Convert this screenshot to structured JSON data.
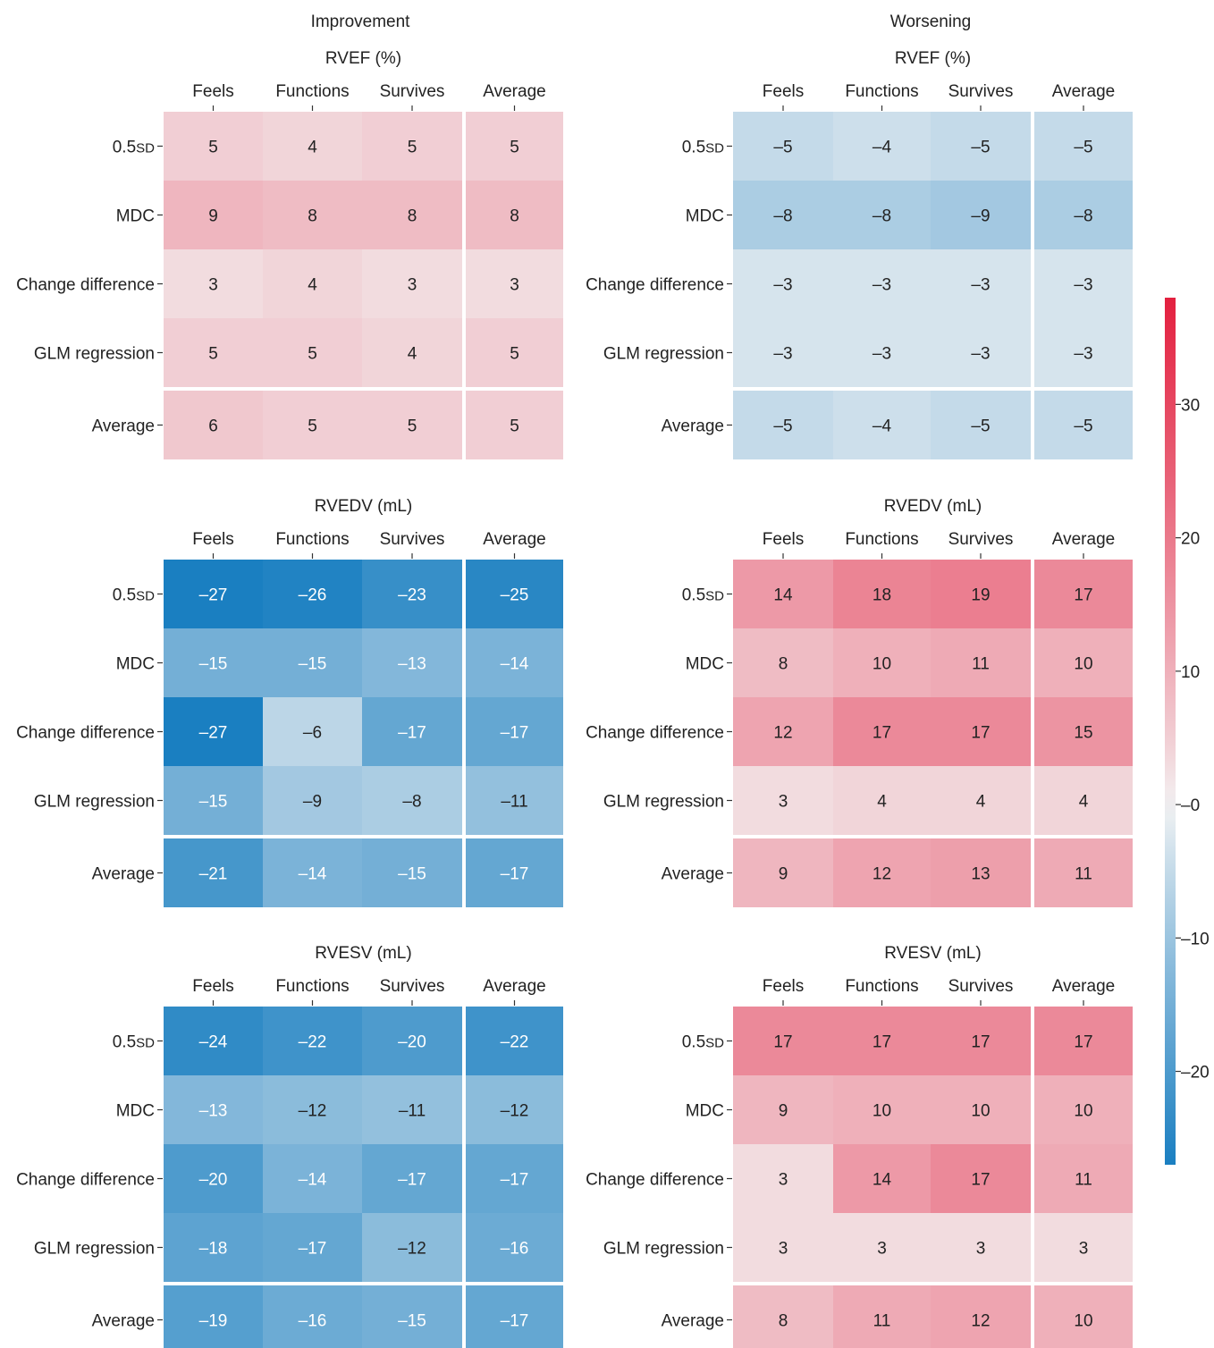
{
  "column_headers": [
    "Improvement",
    "Worsening"
  ],
  "chart_data": {
    "type": "heatmap",
    "colorbar": {
      "range": [
        -27,
        38
      ],
      "ticks": [
        30,
        20,
        10,
        0,
        -10,
        -20
      ],
      "tick_labels": [
        "30",
        "20",
        "10",
        "–0",
        "–10",
        "–20"
      ],
      "colors": {
        "low": "#1a7fc1",
        "mid": "#f4f4f4",
        "high": "#e3203f"
      }
    },
    "panels": [
      {
        "group": "Improvement",
        "title": "RVEF (%)",
        "x_labels": [
          "Feels",
          "Functions",
          "Survives",
          "Average"
        ],
        "y_labels": [
          "0.5SD",
          "MDC",
          "Change difference",
          "GLM regression",
          "Average"
        ],
        "values": [
          [
            5,
            4,
            5,
            5
          ],
          [
            9,
            8,
            8,
            8
          ],
          [
            3,
            4,
            3,
            3
          ],
          [
            5,
            5,
            4,
            5
          ],
          [
            6,
            5,
            5,
            5
          ]
        ],
        "cell_labels": [
          [
            "5",
            "4",
            "5",
            "5"
          ],
          [
            "9",
            "8",
            "8",
            "8"
          ],
          [
            "3",
            "4",
            "3",
            "3"
          ],
          [
            "5",
            "5",
            "4",
            "5"
          ],
          [
            "6",
            "5",
            "5",
            "5"
          ]
        ]
      },
      {
        "group": "Worsening",
        "title": "RVEF (%)",
        "x_labels": [
          "Feels",
          "Functions",
          "Survives",
          "Average"
        ],
        "y_labels": [
          "0.5SD",
          "MDC",
          "Change difference",
          "GLM regression",
          "Average"
        ],
        "values": [
          [
            -5,
            -4,
            -5,
            -5
          ],
          [
            -8,
            -8,
            -9,
            -8
          ],
          [
            -3,
            -3,
            -3,
            -3
          ],
          [
            -3,
            -3,
            -3,
            -3
          ],
          [
            -5,
            -4,
            -5,
            -5
          ]
        ],
        "cell_labels": [
          [
            "–5",
            "–4",
            "–5",
            "–5"
          ],
          [
            "–8",
            "–8",
            "–9",
            "–8"
          ],
          [
            "–3",
            "–3",
            "–3",
            "–3"
          ],
          [
            "–3",
            "–3",
            "–3",
            "–3"
          ],
          [
            "–5",
            "–4",
            "–5",
            "–5"
          ]
        ]
      },
      {
        "group": "Improvement",
        "title": "RVEDV (mL)",
        "x_labels": [
          "Feels",
          "Functions",
          "Survives",
          "Average"
        ],
        "y_labels": [
          "0.5SD",
          "MDC",
          "Change difference",
          "GLM regression",
          "Average"
        ],
        "values": [
          [
            -27,
            -26,
            -23,
            -25
          ],
          [
            -15,
            -15,
            -13,
            -14
          ],
          [
            -27,
            -6,
            -17,
            -17
          ],
          [
            -15,
            -9,
            -8,
            -11
          ],
          [
            -21,
            -14,
            -15,
            -17
          ]
        ],
        "cell_labels": [
          [
            "–27",
            "–26",
            "–23",
            "–25"
          ],
          [
            "–15",
            "–15",
            "–13",
            "–14"
          ],
          [
            "–27",
            "–6",
            "–17",
            "–17"
          ],
          [
            "–15",
            "–9",
            "–8",
            "–11"
          ],
          [
            "–21",
            "–14",
            "–15",
            "–17"
          ]
        ]
      },
      {
        "group": "Worsening",
        "title": "RVEDV (mL)",
        "x_labels": [
          "Feels",
          "Functions",
          "Survives",
          "Average"
        ],
        "y_labels": [
          "0.5SD",
          "MDC",
          "Change difference",
          "GLM regression",
          "Average"
        ],
        "values": [
          [
            14,
            18,
            19,
            17
          ],
          [
            8,
            10,
            11,
            10
          ],
          [
            12,
            17,
            17,
            15
          ],
          [
            3,
            4,
            4,
            4
          ],
          [
            9,
            12,
            13,
            11
          ]
        ],
        "cell_labels": [
          [
            "14",
            "18",
            "19",
            "17"
          ],
          [
            "8",
            "10",
            "11",
            "10"
          ],
          [
            "12",
            "17",
            "17",
            "15"
          ],
          [
            "3",
            "4",
            "4",
            "4"
          ],
          [
            "9",
            "12",
            "13",
            "11"
          ]
        ]
      },
      {
        "group": "Improvement",
        "title": "RVESV (mL)",
        "x_labels": [
          "Feels",
          "Functions",
          "Survives",
          "Average"
        ],
        "y_labels": [
          "0.5SD",
          "MDC",
          "Change difference",
          "GLM regression",
          "Average"
        ],
        "values": [
          [
            -24,
            -22,
            -20,
            -22
          ],
          [
            -13,
            -12,
            -11,
            -12
          ],
          [
            -20,
            -14,
            -17,
            -17
          ],
          [
            -18,
            -17,
            -12,
            -16
          ],
          [
            -19,
            -16,
            -15,
            -17
          ]
        ],
        "cell_labels": [
          [
            "–24",
            "–22",
            "–20",
            "–22"
          ],
          [
            "–13",
            "–12",
            "–11",
            "–12"
          ],
          [
            "–20",
            "–14",
            "–17",
            "–17"
          ],
          [
            "–18",
            "–17",
            "–12",
            "–16"
          ],
          [
            "–19",
            "–16",
            "–15",
            "–17"
          ]
        ]
      },
      {
        "group": "Worsening",
        "title": "RVESV (mL)",
        "x_labels": [
          "Feels",
          "Functions",
          "Survives",
          "Average"
        ],
        "y_labels": [
          "0.5SD",
          "MDC",
          "Change difference",
          "GLM regression",
          "Average"
        ],
        "values": [
          [
            17,
            17,
            17,
            17
          ],
          [
            9,
            10,
            10,
            10
          ],
          [
            3,
            14,
            17,
            11
          ],
          [
            3,
            3,
            3,
            3
          ],
          [
            8,
            11,
            12,
            10
          ]
        ],
        "cell_labels": [
          [
            "17",
            "17",
            "17",
            "17"
          ],
          [
            "9",
            "10",
            "10",
            "10"
          ],
          [
            "3",
            "14",
            "17",
            "11"
          ],
          [
            "3",
            "3",
            "3",
            "3"
          ],
          [
            "8",
            "11",
            "12",
            "10"
          ]
        ]
      }
    ]
  }
}
